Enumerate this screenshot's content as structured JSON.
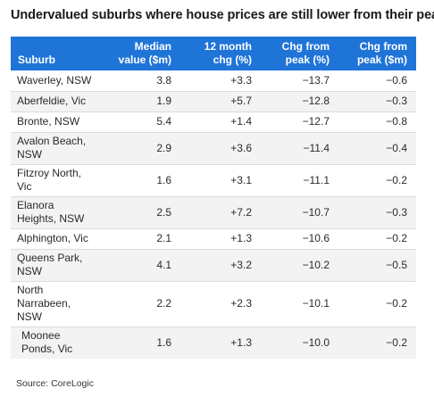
{
  "title": "Undervalued suburbs where house prices are still lower from their peaks",
  "table": {
    "headers": {
      "suburb": "Suburb",
      "median": "Median value ($m)",
      "chg12": "12 month chg (%)",
      "chg_peak_pct": "Chg from peak (%)",
      "chg_peak_m": "Chg from peak ($m)"
    },
    "rows": [
      {
        "suburb": "Waverley, NSW",
        "median": "3.8",
        "chg12": "+3.3",
        "chg_peak_pct": "−13.7",
        "chg_peak_m": "−0.6"
      },
      {
        "suburb": "Aberfeldie, Vic",
        "median": "1.9",
        "chg12": "+5.7",
        "chg_peak_pct": "−12.8",
        "chg_peak_m": "−0.3"
      },
      {
        "suburb": "Bronte, NSW",
        "median": "5.4",
        "chg12": "+1.4",
        "chg_peak_pct": "−12.7",
        "chg_peak_m": "−0.8"
      },
      {
        "suburb": "Avalon Beach, NSW",
        "median": "2.9",
        "chg12": "+3.6",
        "chg_peak_pct": "−11.4",
        "chg_peak_m": "−0.4"
      },
      {
        "suburb": "Fitzroy North, Vic",
        "median": "1.6",
        "chg12": "+3.1",
        "chg_peak_pct": "−11.1",
        "chg_peak_m": "−0.2"
      },
      {
        "suburb": "Elanora Heights, NSW",
        "median": "2.5",
        "chg12": "+7.2",
        "chg_peak_pct": "−10.7",
        "chg_peak_m": "−0.3"
      },
      {
        "suburb": "Alphington, Vic",
        "median": "2.1",
        "chg12": "+1.3",
        "chg_peak_pct": "−10.6",
        "chg_peak_m": "−0.2"
      },
      {
        "suburb": "Queens Park, NSW",
        "median": "4.1",
        "chg12": "+3.2",
        "chg_peak_pct": "−10.2",
        "chg_peak_m": "−0.5"
      },
      {
        "suburb": "North Narrabeen, NSW",
        "median": "2.2",
        "chg12": "+2.3",
        "chg_peak_pct": "−10.1",
        "chg_peak_m": "−0.2"
      },
      {
        "suburb": "Moonee Ponds, Vic",
        "median": "1.6",
        "chg12": "+1.3",
        "chg_peak_pct": "−10.0",
        "chg_peak_m": "−0.2"
      }
    ]
  },
  "source": "Source: CoreLogic",
  "colors": {
    "header_background": "#1f74d8",
    "header_text": "#ffffff",
    "row_shade": "#f3f3f3"
  }
}
